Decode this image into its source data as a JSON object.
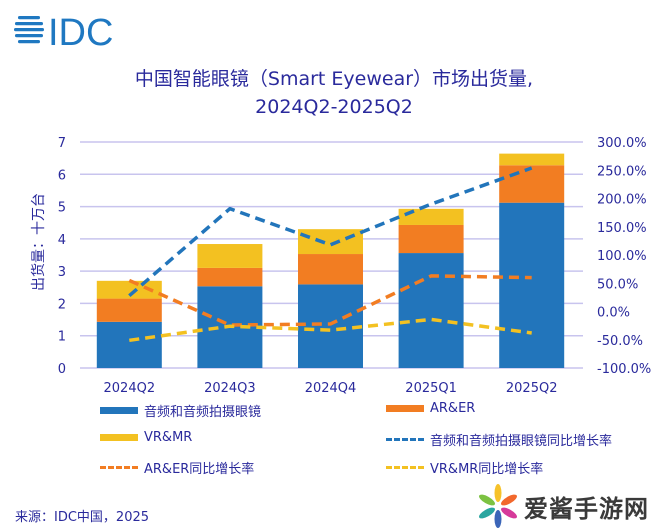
{
  "brand": {
    "logo_text": "IDC",
    "logo_icon": "globe-lines-icon",
    "color": "#1f78c1"
  },
  "title_line1": "中国智能眼镜（Smart Eyewear）市场出货量,",
  "title_line2": "2024Q2-2025Q2",
  "source": "来源：IDC中国，2025",
  "watermark": {
    "text": "爱酱手游网",
    "icon": "pinwheel-flower-icon"
  },
  "colors": {
    "audio": "#2275bb",
    "arer": "#f27d22",
    "vrmr": "#f3c121",
    "grid": "#c8c4ee",
    "text": "#2a2a9c"
  },
  "chart_data": {
    "type": "bar",
    "stacked": true,
    "title": "中国智能眼镜（Smart Eyewear）市场出货量, 2024Q2-2025Q2",
    "xlabel": "",
    "ylabel": "出货量：十万台",
    "y2label": "",
    "categories": [
      "2024Q2",
      "2024Q3",
      "2024Q4",
      "2025Q1",
      "2025Q2"
    ],
    "ylim": [
      0,
      7
    ],
    "yticks": [
      "0",
      "1",
      "2",
      "3",
      "4",
      "5",
      "6",
      "7"
    ],
    "y2lim": [
      -100,
      300
    ],
    "y2ticks": [
      "-100.0%",
      "-50.0%",
      "0.0%",
      "50.0%",
      "100.0%",
      "150.0%",
      "200.0%",
      "250.0%",
      "300.0%"
    ],
    "grid": true,
    "legend_position": "bottom",
    "series": [
      {
        "name": "音频和音频拍摄眼镜",
        "kind": "bar",
        "color_key": "audio",
        "values": [
          1.43,
          2.53,
          2.59,
          3.56,
          5.12
        ]
      },
      {
        "name": "AR&ER",
        "kind": "bar",
        "color_key": "arer",
        "values": [
          0.72,
          0.57,
          0.94,
          0.87,
          1.16
        ]
      },
      {
        "name": "VR&MR",
        "kind": "bar",
        "color_key": "vrmr",
        "values": [
          0.55,
          0.74,
          0.77,
          0.5,
          0.36
        ]
      },
      {
        "name": "音频和音频拍摄眼镜同比增长率",
        "kind": "line",
        "axis": "y2",
        "color_key": "audio",
        "values": [
          28.0,
          182.0,
          118.0,
          190.0,
          254.0
        ]
      },
      {
        "name": "AR&ER同比增长率",
        "kind": "line",
        "axis": "y2",
        "color_key": "arer",
        "values": [
          55.0,
          -24.0,
          -22.0,
          63.0,
          60.0
        ]
      },
      {
        "name": "VR&MR同比增长率",
        "kind": "line",
        "axis": "y2",
        "color_key": "vrmr",
        "values": [
          -51.0,
          -26.0,
          -33.0,
          -14.0,
          -38.0
        ]
      }
    ]
  },
  "legend": [
    {
      "label": "音频和音频拍摄眼镜",
      "style": "swatch",
      "color_key": "audio"
    },
    {
      "label": "AR&ER",
      "style": "swatch",
      "color_key": "arer"
    },
    {
      "label": "VR&MR",
      "style": "swatch",
      "color_key": "vrmr"
    },
    {
      "label": "音频和音频拍摄眼镜同比增长率",
      "style": "dash",
      "color_key": "audio"
    },
    {
      "label": "AR&ER同比增长率",
      "style": "dash",
      "color_key": "arer"
    },
    {
      "label": "VR&MR同比增长率",
      "style": "dash",
      "color_key": "vrmr"
    }
  ]
}
